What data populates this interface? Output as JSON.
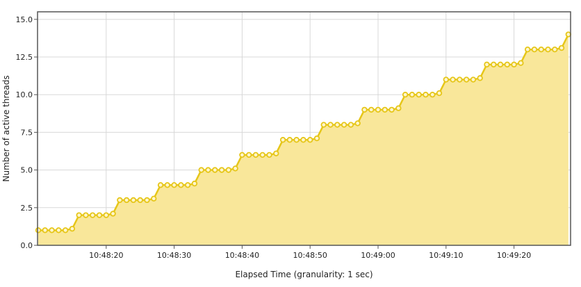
{
  "chart_data": {
    "type": "area",
    "xlabel": "Elapsed Time (granularity: 1 sec)",
    "ylabel": "Number of active threads",
    "ylim": [
      0,
      15.5
    ],
    "y_ticks": [
      "0.0",
      "2.5",
      "5.0",
      "7.5",
      "10.0",
      "12.5",
      "15.0"
    ],
    "x_ticks": [
      {
        "label": "10:48:20",
        "t": 10
      },
      {
        "label": "10:48:30",
        "t": 20
      },
      {
        "label": "10:48:40",
        "t": 30
      },
      {
        "label": "10:48:50",
        "t": 40
      },
      {
        "label": "10:49:00",
        "t": 50
      },
      {
        "label": "10:49:10",
        "t": 60
      },
      {
        "label": "10:49:20",
        "t": 70
      }
    ],
    "x_range_seconds": [
      10.48,
      10.49
    ],
    "start_time_label": "10:48:10",
    "grid": true,
    "legend": "none",
    "colors": {
      "line": "#e6c619",
      "fill": "#f9e79a",
      "marker_fill": "#fff6cc",
      "grid": "#d8d8d8",
      "frame": "#555555"
    },
    "series": [
      {
        "values": [
          1,
          1,
          1,
          1,
          1,
          1.1,
          2,
          2,
          2,
          2,
          2,
          2.1,
          3,
          3,
          3,
          3,
          3,
          3.1,
          4,
          4,
          4,
          4,
          4,
          4.1,
          5,
          5,
          5,
          5,
          5,
          5.1,
          6,
          6,
          6,
          6,
          6,
          6.1,
          7,
          7,
          7,
          7,
          7,
          7.1,
          8,
          8,
          8,
          8,
          8,
          8.1,
          9,
          9,
          9,
          9,
          9,
          9.1,
          10,
          10,
          10,
          10,
          10,
          10.1,
          11,
          11,
          11,
          11,
          11,
          11.1,
          12,
          12,
          12,
          12,
          12,
          12.1,
          13,
          13,
          13,
          13,
          13,
          13.1,
          14
        ]
      }
    ]
  }
}
